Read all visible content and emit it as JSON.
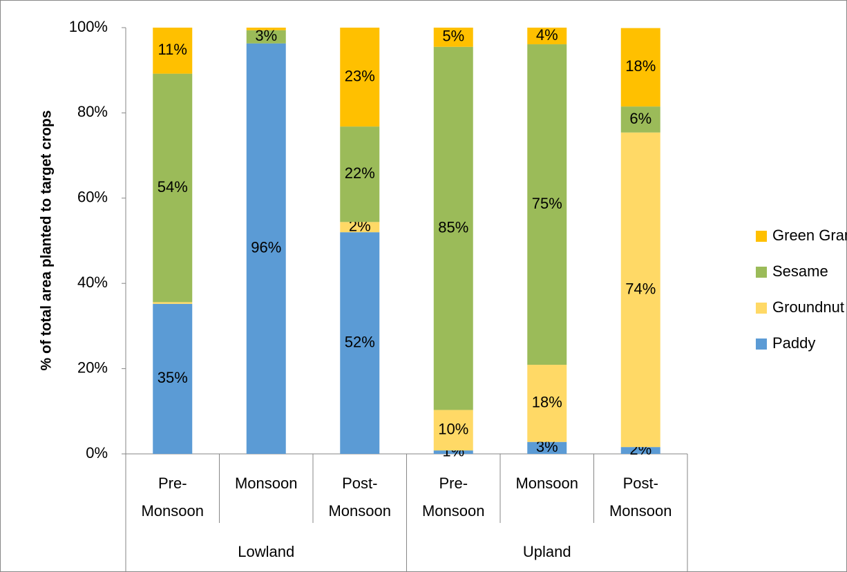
{
  "chart_data": {
    "type": "stacked_bar",
    "y_label": "% of total area planted to target crops",
    "categories": [
      "Pre-Monsoon",
      "Monsoon",
      "Post-Monsoon",
      "Pre-Monsoon",
      "Monsoon",
      "Post-Monsoon"
    ],
    "groups": [
      {
        "name": "Lowland",
        "count": 3
      },
      {
        "name": "Upland",
        "count": 3
      }
    ],
    "series": [
      {
        "name": "Paddy",
        "color": "#5b9bd5",
        "values": [
          35.2,
          96.3,
          52.0,
          0.8,
          2.8,
          1.6
        ],
        "value_labels": [
          "35%",
          "96%",
          "52%",
          "1%",
          "3%",
          "2%"
        ]
      },
      {
        "name": "Groundnut",
        "color": "#ffd966",
        "values": [
          0.4,
          0,
          2.4,
          9.5,
          18.1,
          73.8
        ],
        "value_labels": [
          null,
          null,
          "2%",
          "10%",
          "18%",
          "74%"
        ]
      },
      {
        "name": "Sesame",
        "color": "#9bbb59",
        "values": [
          53.6,
          3.1,
          22.4,
          85.2,
          75.2,
          6.1
        ],
        "value_labels": [
          "54%",
          "3%",
          "22%",
          "85%",
          "75%",
          "6%"
        ]
      },
      {
        "name": "Green Gram",
        "color": "#ffc000",
        "values": [
          10.8,
          0.6,
          23.2,
          4.5,
          3.9,
          18.4
        ],
        "value_labels": [
          "11%",
          null,
          "23%",
          "5%",
          "4%",
          "18%"
        ]
      }
    ],
    "ylim": [
      0,
      100
    ],
    "yticks": [
      {
        "value": 0,
        "label": "0%"
      },
      {
        "value": 20,
        "label": "20%"
      },
      {
        "value": 40,
        "label": "40%"
      },
      {
        "value": 60,
        "label": "60%"
      },
      {
        "value": 80,
        "label": "80%"
      },
      {
        "value": 100,
        "label": "100%"
      }
    ],
    "legend": "right"
  }
}
